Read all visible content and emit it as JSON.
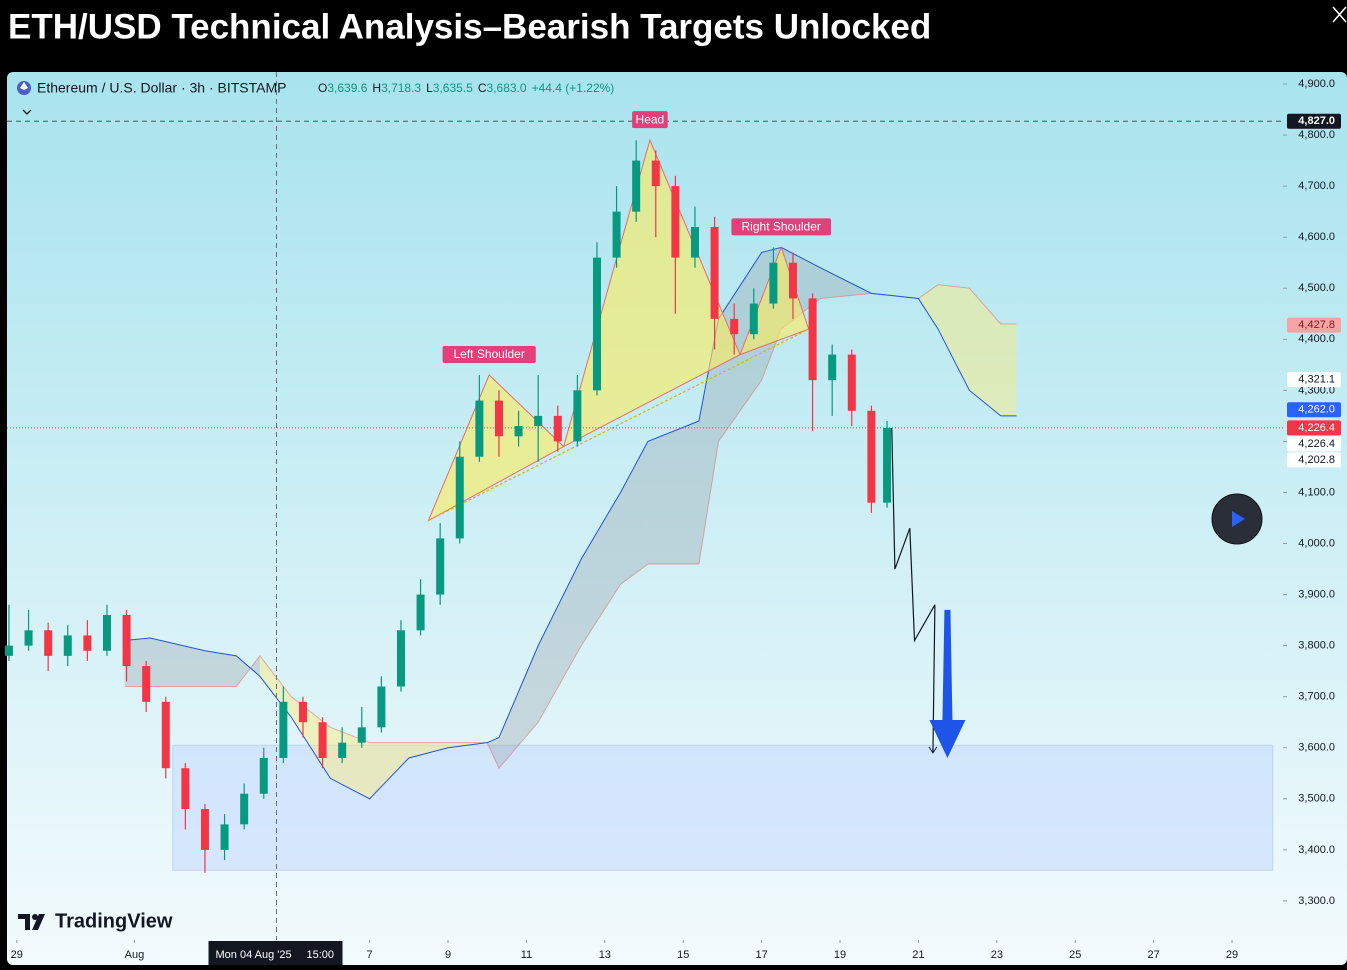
{
  "title": "ETH/USD Technical Analysis–Bearish Targets Unlocked",
  "chart_data": {
    "type": "candlestick",
    "symbol": "Ethereum / U.S. Dollar · 3h · BITSTAMP",
    "ohlc": [
      {
        "key": "O",
        "value": "3,639.6"
      },
      {
        "key": "H",
        "value": "3,718.3"
      },
      {
        "key": "L",
        "value": "3,635.5"
      },
      {
        "key": "C",
        "value": "3,683.0"
      }
    ],
    "change": "+44.4 (+1.22%)",
    "up_color": "#089981",
    "down_color": "#f23645",
    "x": [
      -0.2,
      0.3,
      0.8,
      1.3,
      1.8,
      2.3,
      2.8,
      3.3,
      3.8,
      4.3,
      4.8,
      5.3,
      5.8,
      6.3,
      6.8,
      7.3,
      7.8,
      8.3,
      8.8,
      9.3,
      9.8,
      10.3,
      10.8,
      11.3,
      11.8,
      12.3,
      12.8,
      13.3,
      13.8,
      14.3,
      14.8,
      15.3,
      15.8,
      16.3,
      16.8,
      17.3,
      17.8,
      18.3,
      18.8,
      19.3,
      19.8,
      20.3,
      20.8,
      21.3,
      21.8,
      22.2
    ],
    "open": [
      3780,
      3800,
      3830,
      3780,
      3820,
      3790,
      3860,
      3760,
      3690,
      3560,
      3480,
      3400,
      3450,
      3510,
      3580,
      3690,
      3650,
      3580,
      3610,
      3640,
      3720,
      3830,
      3900,
      4010,
      4170,
      4280,
      4210,
      4230,
      4250,
      4200,
      4300,
      4560,
      4650,
      4750,
      4700,
      4560,
      4620,
      4440,
      4410,
      4470,
      4550,
      4480,
      4320,
      4370,
      4260,
      4080
    ],
    "high": [
      3880,
      3870,
      3845,
      3840,
      3850,
      3880,
      3870,
      3770,
      3700,
      3570,
      3490,
      3470,
      3530,
      3600,
      3720,
      3700,
      3660,
      3640,
      3680,
      3740,
      3850,
      3930,
      4040,
      4200,
      4330,
      4300,
      4260,
      4330,
      4270,
      4330,
      4590,
      4700,
      4790,
      4770,
      4720,
      4660,
      4640,
      4470,
      4500,
      4580,
      4570,
      4490,
      4390,
      4380,
      4270,
      4240
    ],
    "low": [
      3770,
      3790,
      3750,
      3760,
      3770,
      3780,
      3730,
      3670,
      3540,
      3440,
      3355,
      3380,
      3440,
      3500,
      3570,
      3620,
      3560,
      3570,
      3600,
      3630,
      3710,
      3820,
      3880,
      4000,
      4160,
      4170,
      4190,
      4160,
      4180,
      4190,
      4290,
      4540,
      4630,
      4600,
      4450,
      4540,
      4380,
      4370,
      4400,
      4460,
      4440,
      4220,
      4250,
      4230,
      4060,
      4070
    ],
    "close": [
      3800,
      3830,
      3780,
      3820,
      3790,
      3860,
      3760,
      3690,
      3560,
      3480,
      3400,
      3450,
      3510,
      3580,
      3690,
      3650,
      3580,
      3610,
      3640,
      3720,
      3830,
      3900,
      4010,
      4170,
      4280,
      4210,
      4230,
      4250,
      4200,
      4300,
      4560,
      4650,
      4750,
      4700,
      4560,
      4620,
      4440,
      4410,
      4470,
      4550,
      4480,
      4320,
      4370,
      4260,
      4080,
      4226.4
    ],
    "cloud": {
      "x": [
        2.75,
        3.4,
        4.8,
        5.6,
        6.2,
        7.0,
        8.0,
        9.0,
        10.0,
        11.0,
        12.0,
        12.3,
        13.3,
        14.4,
        15.4,
        16.1,
        17.4,
        17.9,
        19.0,
        19.5,
        20.5,
        21.8,
        23.0,
        23.5,
        24.3,
        25.1,
        25.5
      ],
      "span_a": [
        3810,
        3815,
        3790,
        3780,
        3740,
        3660,
        3540,
        3500,
        3580,
        3600,
        3610,
        3620,
        3800,
        3970,
        4100,
        4200,
        4240,
        4440,
        4570,
        4580,
        4540,
        4490,
        4480,
        4420,
        4300,
        4250,
        4250
      ],
      "span_b": [
        3720,
        3720,
        3720,
        3720,
        3780,
        3700,
        3640,
        3610,
        3610,
        3610,
        3610,
        3560,
        3650,
        3800,
        3920,
        3960,
        3960,
        4200,
        4320,
        4420,
        4480,
        4490,
        4480,
        4507,
        4500,
        4430,
        4430
      ]
    },
    "pattern": {
      "x": [
        10.5,
        12.05,
        13.95,
        16.15,
        18.45,
        19.5,
        20.2
      ],
      "y": [
        4045,
        4330,
        4190,
        4790,
        4370,
        4580,
        4420
      ],
      "labels": [
        "Left Shoulder",
        "Head",
        "Right Shoulder"
      ]
    },
    "projection": {
      "x": [
        22.32,
        22.4,
        22.78,
        22.9,
        23.42,
        23.37
      ],
      "y": [
        4226.4,
        3950,
        4030,
        3810,
        3880,
        3590
      ]
    },
    "target_arrow": {
      "x": 23.74,
      "y": [
        3870,
        3580
      ]
    },
    "target_zone": {
      "x": [
        3.98,
        32.04
      ],
      "y": [
        3360,
        3605
      ]
    },
    "crosshair": {
      "x": 6.625,
      "date": "Mon 04 Aug '25",
      "time": "15:00"
    },
    "xlim": [
      -0.25,
      32.3
    ],
    "ylim": [
      3223.5,
      4923.5
    ],
    "xticks": [
      {
        "value": 0,
        "label": "29"
      },
      {
        "value": 3,
        "label": "Aug"
      },
      {
        "value": 9,
        "label": "7"
      },
      {
        "value": 11,
        "label": "9"
      },
      {
        "value": 13,
        "label": "11"
      },
      {
        "value": 15,
        "label": "13"
      },
      {
        "value": 17,
        "label": "15"
      },
      {
        "value": 19,
        "label": "17"
      },
      {
        "value": 21,
        "label": "19"
      },
      {
        "value": 23,
        "label": "21"
      },
      {
        "value": 25,
        "label": "23"
      },
      {
        "value": 27,
        "label": "25"
      },
      {
        "value": 29,
        "label": "27"
      },
      {
        "value": 31,
        "label": "29"
      }
    ],
    "yticks": [
      {
        "value": 3300,
        "label": "3,300.0"
      },
      {
        "value": 3400,
        "label": "3,400.0"
      },
      {
        "value": 3500,
        "label": "3,500.0"
      },
      {
        "value": 3600,
        "label": "3,600.0"
      },
      {
        "value": 3700,
        "label": "3,700.0"
      },
      {
        "value": 3800,
        "label": "3,800.0"
      },
      {
        "value": 3900,
        "label": "3,900.0"
      },
      {
        "value": 4000,
        "label": "4,000.0"
      },
      {
        "value": 4100,
        "label": "4,100.0"
      },
      {
        "value": 4200,
        "label": "4,200.0"
      },
      {
        "value": 4300,
        "label": "4,300.0"
      },
      {
        "value": 4400,
        "label": "4,400.0"
      },
      {
        "value": 4500,
        "label": "4,500.0"
      },
      {
        "value": 4600,
        "label": "4,600.0"
      },
      {
        "value": 4700,
        "label": "4,700.0"
      },
      {
        "value": 4800,
        "label": "4,800.0"
      },
      {
        "value": 4900,
        "label": "4,900.0"
      }
    ],
    "price_labels": [
      {
        "value": 4827.0,
        "label": "4,827.0",
        "bg": "#131722",
        "fg": "#ffffff",
        "line": "dashed"
      },
      {
        "value": 4427.8,
        "label": "4,427.8",
        "bg": "#f5a3a3",
        "fg": "#801922"
      },
      {
        "value": 4321.1,
        "label": "4,321.1",
        "bg": "#ffffff",
        "fg": "#131722"
      },
      {
        "value": 4262.0,
        "label": "4,262.0",
        "bg": "#2962ff",
        "fg": "#ffffff"
      },
      {
        "value": 4226.4,
        "label": "4,226.4",
        "bg": "#f23645",
        "fg": "#ffffff",
        "line": "dotted"
      },
      {
        "value": 4226.4,
        "label": "4,226.4",
        "bg": "#ffffff",
        "fg": "#131722"
      },
      {
        "value": 4202.8,
        "label": "4,202.8",
        "bg": "#ffffff",
        "fg": "#131722"
      }
    ],
    "grid": false
  },
  "brand": "TradingView"
}
